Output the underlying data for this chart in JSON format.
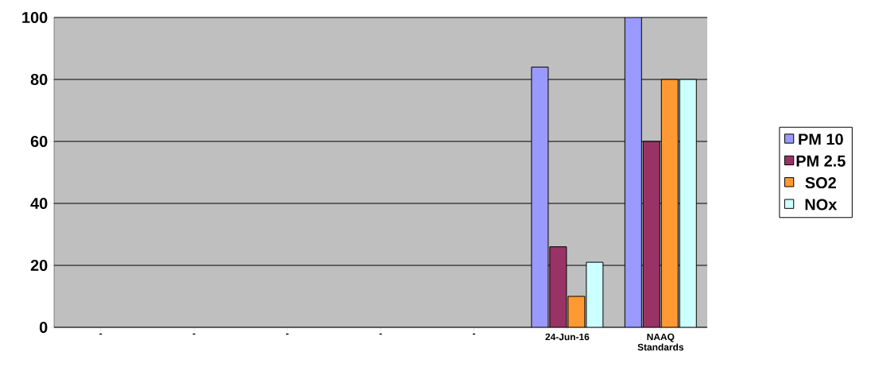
{
  "chart_data": {
    "type": "bar",
    "categories": [
      "-",
      "-",
      "-",
      "-",
      "-",
      "24-Jun-16",
      "NAAQ Standards"
    ],
    "series": [
      {
        "name": "PM 10",
        "color": "#9999ff",
        "values": [
          null,
          null,
          null,
          null,
          null,
          84,
          100
        ]
      },
      {
        "name": "PM 2.5",
        "color": "#993366",
        "values": [
          null,
          null,
          null,
          null,
          null,
          26,
          60
        ]
      },
      {
        "name": "SO2",
        "color": "#ff9933",
        "values": [
          null,
          null,
          null,
          null,
          null,
          10,
          80
        ]
      },
      {
        "name": "NOx",
        "color": "#ccffff",
        "values": [
          null,
          null,
          null,
          null,
          null,
          21,
          80
        ]
      }
    ],
    "ylim": [
      0,
      100
    ],
    "yticks": [
      0,
      20,
      40,
      60,
      80,
      100
    ],
    "grid": "y",
    "legend": "right"
  }
}
